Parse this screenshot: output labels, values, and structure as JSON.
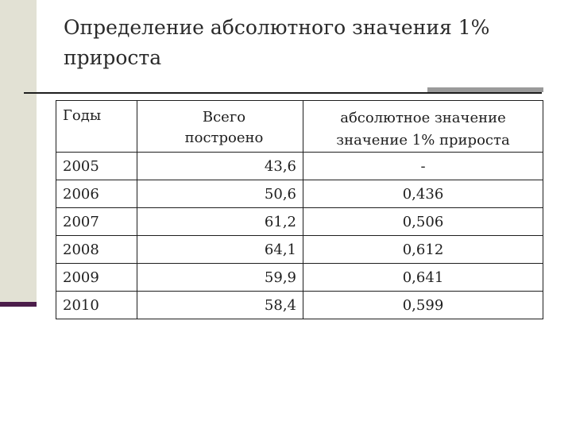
{
  "slide": {
    "title": "Определение абсолютного значения  1% прироста"
  },
  "table": {
    "headers": {
      "year": "Годы",
      "built_line1": "Всего",
      "built_line2": "построено",
      "abs_line1": "абсолютное значение",
      "abs_line2": "значение 1%  прироста"
    },
    "rows": [
      {
        "year": "2005",
        "built": "43,6",
        "abs": "-"
      },
      {
        "year": "2006",
        "built": "50,6",
        "abs": "0,436"
      },
      {
        "year": "2007",
        "built": "61,2",
        "abs": "0,506"
      },
      {
        "year": "2008",
        "built": "64,1",
        "abs": "0,612"
      },
      {
        "year": "2009",
        "built": "59,9",
        "abs": "0,641"
      },
      {
        "year": "2010",
        "built": "58,4",
        "abs": "0,599"
      }
    ]
  },
  "colors": {
    "side_band": "#e2e1d4",
    "side_accent": "#4b1d4a",
    "rule_accent": "#9a9a9a"
  }
}
